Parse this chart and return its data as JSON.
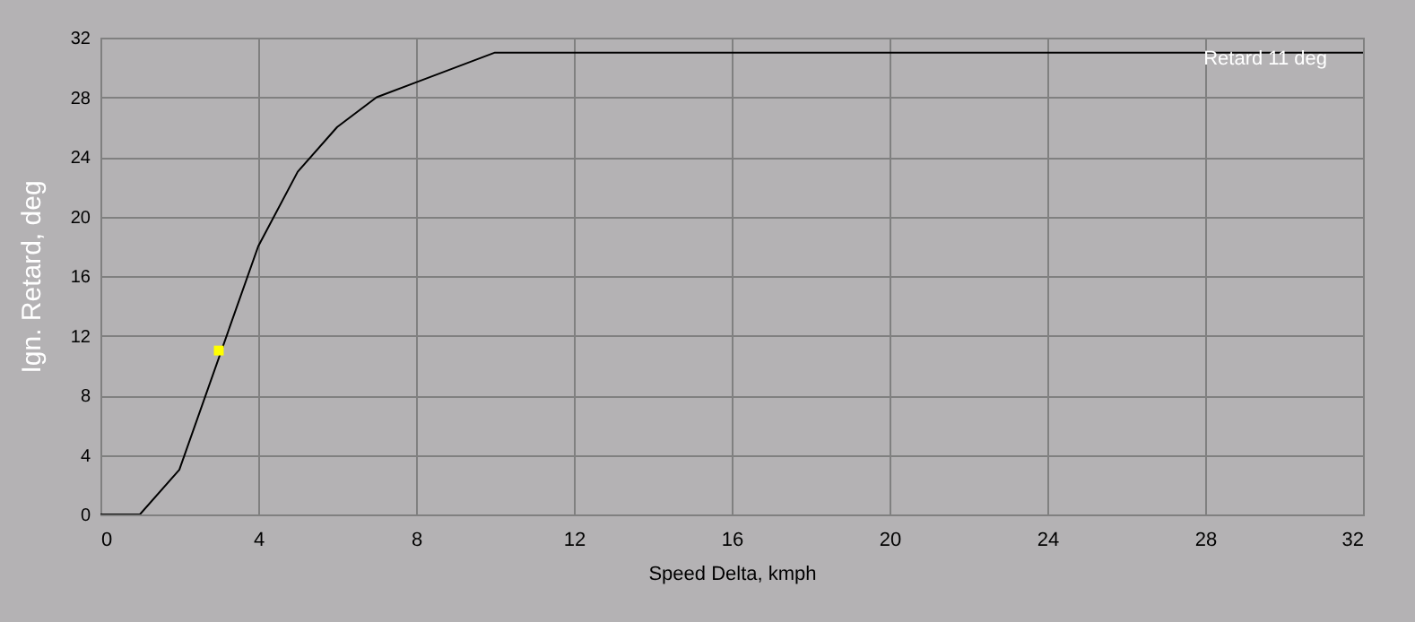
{
  "chart_data": {
    "type": "line",
    "xlabel": "Speed Delta, kmph",
    "ylabel": "Ign. Retard, deg",
    "xlim": [
      0,
      32
    ],
    "xticks": [
      0,
      4,
      8,
      12,
      16,
      20,
      24,
      28,
      32
    ],
    "ylim": [
      0,
      32
    ],
    "yticks": [
      0,
      4,
      8,
      12,
      16,
      20,
      24,
      28,
      32
    ],
    "grid": true,
    "annotations": [
      "Retard 11 deg"
    ],
    "series": [
      {
        "type": "line",
        "color": "#000000",
        "x": [
          0,
          1,
          2,
          4,
          5,
          6,
          7,
          8,
          10,
          32
        ],
        "values": [
          0,
          0,
          3,
          18,
          23,
          26,
          28,
          29,
          31,
          31
        ]
      },
      {
        "type": "scatter",
        "color": "#ffff00",
        "marker": "square",
        "x": [
          3
        ],
        "values": [
          11
        ]
      }
    ]
  }
}
